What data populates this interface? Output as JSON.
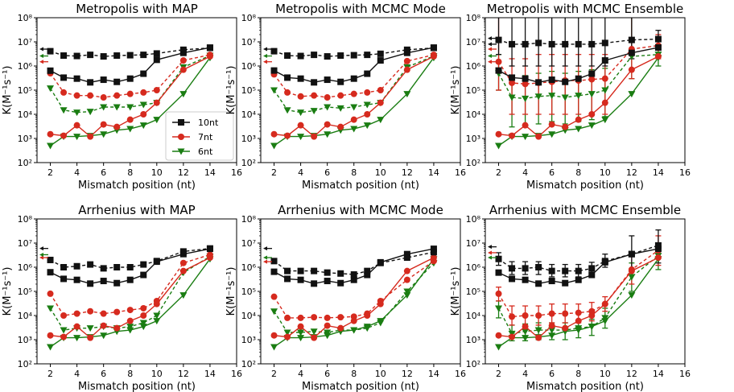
{
  "charts": [
    {
      "title": "Metropolis with MAP",
      "solid": {
        "10nt": [
          640000,
          330000,
          300000,
          210000,
          270000,
          220000,
          300000,
          480000,
          1800000,
          3500000,
          5800000
        ],
        "7nt": [
          1500,
          1300,
          3500,
          1200,
          3800,
          3000,
          6000,
          10000,
          30000,
          700000,
          2500000
        ],
        "6nt": [
          500,
          1200,
          1200,
          1300,
          1500,
          2200,
          2500,
          3500,
          6000,
          70000,
          2200000
        ]
      },
      "dashed": {
        "10nt": [
          4100000,
          2700000,
          2600000,
          2900000,
          2500000,
          2700000,
          2800000,
          2900000,
          3300000,
          4700000,
          5600000
        ],
        "7nt": [
          500000,
          80000,
          60000,
          60000,
          50000,
          60000,
          70000,
          80000,
          100000,
          1700000,
          2900000
        ],
        "6nt": [
          120000,
          15000,
          12000,
          13000,
          20000,
          20000,
          20000,
          25000,
          30000,
          900000,
          2700000
        ]
      },
      "arrows": {
        "10nt": 5000000,
        "7nt": 1500000,
        "6nt": 2600000
      }
    },
    {
      "title": "Metropolis with MCMC Mode",
      "solid": {
        "10nt": [
          650000,
          330000,
          300000,
          210000,
          270000,
          220000,
          300000,
          480000,
          1700000,
          3500000,
          5800000
        ],
        "7nt": [
          1500,
          1300,
          3500,
          1200,
          3800,
          3000,
          6000,
          10000,
          30000,
          700000,
          2500000
        ],
        "6nt": [
          500,
          1200,
          1200,
          1300,
          1500,
          2200,
          2500,
          3500,
          6000,
          70000,
          2200000
        ]
      },
      "dashed": {
        "10nt": [
          4100000,
          2700000,
          2600000,
          2900000,
          2500000,
          2700000,
          2800000,
          2900000,
          3200000,
          4700000,
          5600000
        ],
        "7nt": [
          450000,
          80000,
          55000,
          60000,
          50000,
          60000,
          70000,
          80000,
          100000,
          1600000,
          2900000
        ],
        "6nt": [
          100000,
          15000,
          12000,
          14000,
          20000,
          18000,
          20000,
          25000,
          30000,
          900000,
          2600000
        ]
      },
      "arrows": {
        "10nt": 5000000,
        "7nt": 1500000,
        "6nt": 2600000
      }
    },
    {
      "title": "Metropolis with MCMC Ensemble",
      "solid": {
        "10nt": [
          650000,
          330000,
          300000,
          210000,
          270000,
          220000,
          300000,
          480000,
          1700000,
          3500000,
          5800000
        ],
        "7nt": [
          1500,
          1300,
          3500,
          1200,
          3800,
          3000,
          6000,
          10000,
          30000,
          700000,
          2500000
        ],
        "6nt": [
          500,
          1200,
          1200,
          1300,
          1500,
          2200,
          2500,
          3500,
          6000,
          70000,
          2200000
        ]
      },
      "dashed": {
        "10nt": [
          12000000,
          8000000,
          8000000,
          9000000,
          8000000,
          8000000,
          8000000,
          8000000,
          9000000,
          12000000,
          13000000
        ],
        "7nt": [
          1500000,
          200000,
          180000,
          200000,
          220000,
          250000,
          250000,
          280000,
          300000,
          5000000,
          7000000
        ],
        "6nt": [
          500000,
          50000,
          45000,
          55000,
          60000,
          50000,
          60000,
          70000,
          100000,
          2500000,
          3000000
        ]
      },
      "errors": {
        "10nt": [
          [
            3000000,
            200000000
          ],
          [
            1000000,
            300000000
          ],
          [
            1000000,
            300000000
          ],
          [
            1000000,
            300000000
          ],
          [
            1000000,
            300000000
          ],
          [
            1000000,
            300000000
          ],
          [
            1000000,
            300000000
          ],
          [
            1000000,
            300000000
          ],
          [
            1000000,
            300000000
          ],
          [
            2000000,
            300000000
          ],
          [
            5000000,
            30000000
          ]
        ],
        "7nt": [
          [
            100000,
            300000000
          ],
          [
            10000,
            2000000
          ],
          [
            10000,
            2000000
          ],
          [
            10000,
            3000000
          ],
          [
            10000,
            3000000
          ],
          [
            10000,
            3000000
          ],
          [
            10000,
            3000000
          ],
          [
            10000,
            3000000
          ],
          [
            10000,
            3000000
          ],
          [
            300000,
            100000000
          ],
          [
            2000000,
            20000000
          ]
        ],
        "6nt": [
          [
            100000,
            3000000
          ],
          [
            3000,
            400000
          ],
          [
            3000,
            400000
          ],
          [
            4000,
            500000
          ],
          [
            5000,
            600000
          ],
          [
            4000,
            500000
          ],
          [
            5000,
            600000
          ],
          [
            6000,
            700000
          ],
          [
            8000,
            800000
          ],
          [
            300000,
            100000000
          ],
          [
            1000000,
            8000000
          ]
        ]
      },
      "arrows": {
        "10nt": 14000000,
        "7nt": 1500000,
        "6nt": 2600000,
        "10nt_b": 8000000,
        "7nt_b": 5000000
      }
    },
    {
      "title": "Arrhenius  with MAP",
      "solid": {
        "10nt": [
          620000,
          330000,
          300000,
          210000,
          270000,
          220000,
          300000,
          480000,
          1700000,
          3500000,
          5800000
        ],
        "7nt": [
          1500,
          1300,
          3500,
          1200,
          3800,
          3000,
          6000,
          10000,
          30000,
          700000,
          2500000
        ],
        "6nt": [
          500,
          1200,
          1200,
          1300,
          1500,
          2200,
          2500,
          3500,
          6000,
          70000,
          2200000
        ]
      },
      "dashed": {
        "10nt": [
          2000000,
          1000000,
          1100000,
          1300000,
          900000,
          1000000,
          1000000,
          1300000,
          1800000,
          4500000,
          6000000
        ],
        "7nt": [
          80000,
          10000,
          12000,
          15000,
          12000,
          14000,
          17000,
          20000,
          40000,
          1500000,
          3300000
        ],
        "6nt": [
          20000,
          2500,
          3000,
          3000,
          3500,
          3000,
          3500,
          5000,
          10000,
          600000,
          2800000
        ]
      },
      "arrows": {
        "10nt": 6000000,
        "7nt": 2500000,
        "6nt": 3300000
      }
    },
    {
      "title": "Arrhenius with MCMC Mode",
      "solid": {
        "10nt": [
          650000,
          330000,
          300000,
          210000,
          270000,
          220000,
          300000,
          480000,
          1600000,
          3500000,
          5800000
        ],
        "7nt": [
          1500,
          1300,
          3500,
          1200,
          3800,
          3000,
          6000,
          10000,
          30000,
          700000,
          2500000
        ],
        "6nt": [
          500,
          1200,
          1200,
          1300,
          1500,
          2200,
          2500,
          3500,
          6000,
          70000,
          2200000
        ]
      },
      "dashed": {
        "10nt": [
          1800000,
          700000,
          700000,
          700000,
          600000,
          550000,
          500000,
          700000,
          1500000,
          2500000,
          4200000
        ],
        "7nt": [
          60000,
          8000,
          8000,
          8500,
          8000,
          8500,
          9000,
          12000,
          40000,
          300000,
          1800000
        ],
        "6nt": [
          15000,
          2000,
          2000,
          2200,
          2000,
          2500,
          2500,
          3000,
          5000,
          100000,
          1500000
        ]
      },
      "arrows": {
        "10nt": 6000000,
        "7nt": 1700000,
        "6nt": 2500000
      }
    },
    {
      "title": "Arrhenius with MCMC Ensemble",
      "solid": {
        "10nt": [
          600000,
          330000,
          300000,
          210000,
          270000,
          220000,
          300000,
          480000,
          1600000,
          3500000,
          5800000
        ],
        "7nt": [
          1500,
          1300,
          3500,
          1200,
          3800,
          3000,
          6000,
          10000,
          30000,
          700000,
          2500000
        ],
        "6nt": [
          500,
          1200,
          1200,
          1300,
          1500,
          2200,
          2500,
          3500,
          6000,
          70000,
          2200000
        ]
      },
      "dashed": {
        "10nt": [
          2200000,
          900000,
          900000,
          1000000,
          700000,
          700000,
          700000,
          900000,
          1800000,
          3500000,
          8000000
        ],
        "7nt": [
          80000,
          9000,
          10000,
          10000,
          12000,
          12000,
          13000,
          15000,
          30000,
          800000,
          5000000
        ],
        "6nt": [
          20000,
          1800,
          2200,
          2500,
          2500,
          2500,
          3000,
          3500,
          8000,
          400000,
          3000000
        ]
      },
      "errors": {
        "10nt": [
          [
            1200000,
            4000000
          ],
          [
            500000,
            1700000
          ],
          [
            500000,
            1700000
          ],
          [
            500000,
            1700000
          ],
          [
            400000,
            1300000
          ],
          [
            400000,
            1300000
          ],
          [
            400000,
            1300000
          ],
          [
            500000,
            1600000
          ],
          [
            1000000,
            3500000
          ],
          [
            800000,
            20000000
          ],
          [
            1500000,
            35000000
          ]
        ],
        "7nt": [
          [
            40000,
            150000
          ],
          [
            4000,
            25000
          ],
          [
            4000,
            25000
          ],
          [
            4000,
            25000
          ],
          [
            5000,
            30000
          ],
          [
            5000,
            30000
          ],
          [
            5000,
            30000
          ],
          [
            6000,
            35000
          ],
          [
            15000,
            60000
          ],
          [
            200000,
            3000000
          ],
          [
            1200000,
            20000000
          ]
        ],
        "6nt": [
          [
            8000,
            40000
          ],
          [
            900,
            4000
          ],
          [
            900,
            4500
          ],
          [
            1000,
            5000
          ],
          [
            1000,
            5000
          ],
          [
            1000,
            5000
          ],
          [
            1200,
            6000
          ],
          [
            1500,
            7000
          ],
          [
            3000,
            20000
          ],
          [
            100000,
            1500000
          ],
          [
            800000,
            10000000
          ]
        ]
      },
      "arrows": {
        "10nt": 7000000,
        "7nt": 4000000,
        "6nt": 2500000
      }
    }
  ],
  "chart_data": [
    {
      "type": "line",
      "title": "Metropolis with MAP",
      "xlabel": "Mismatch position (nt)",
      "ylabel": "K(M⁻¹s⁻¹)",
      "xlim": [
        1,
        16
      ],
      "ylim": [
        100,
        100000000
      ],
      "yscale": "log"
    }
  ],
  "shared": {
    "x": [
      2,
      3,
      4,
      5,
      6,
      7,
      8,
      9,
      10,
      12,
      14
    ],
    "xticks": [
      "2",
      "4",
      "6",
      "8",
      "10",
      "12",
      "14",
      "16"
    ],
    "yticks": [
      "10²",
      "10³",
      "10⁴",
      "10⁵",
      "10⁶",
      "10⁷",
      "10⁸"
    ],
    "xlabel": "Mismatch position (nt)",
    "ylabel": "K(M⁻¹s⁻¹)",
    "colors": {
      "10nt": "#111111",
      "7nt": "#d62a1e",
      "6nt": "#1a7d12"
    },
    "legend": [
      "10nt",
      "7nt",
      "6nt"
    ]
  }
}
